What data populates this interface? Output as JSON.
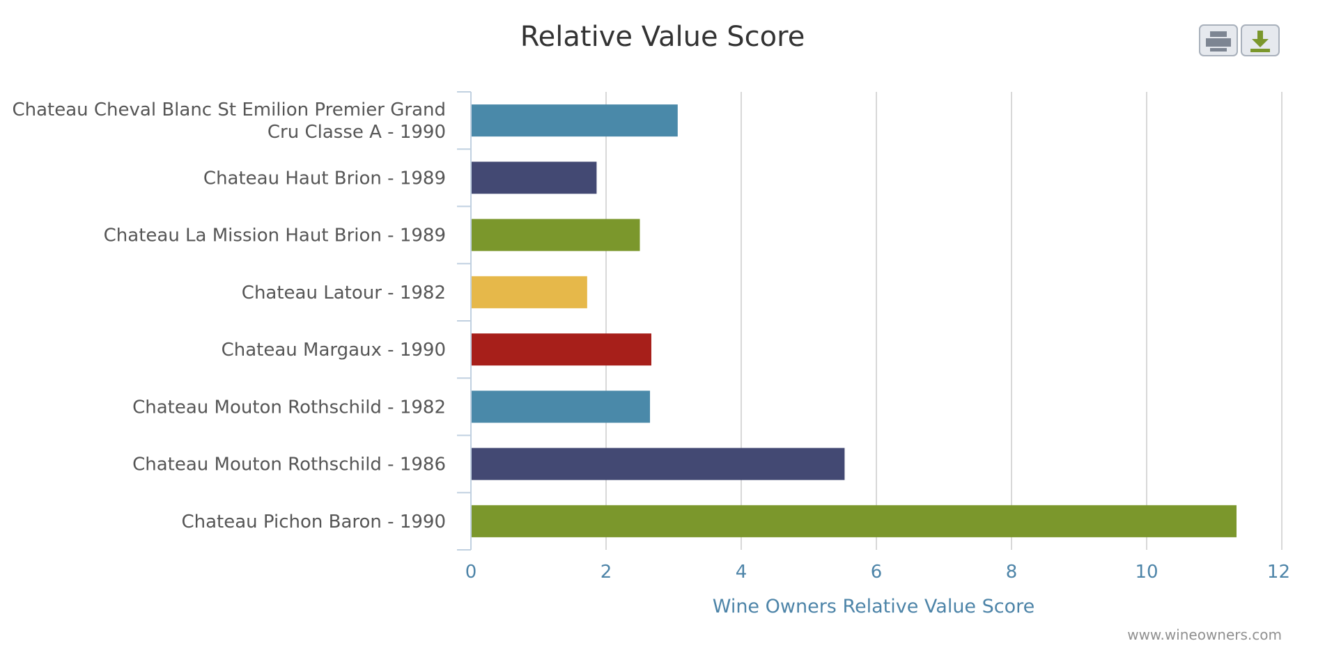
{
  "chart_data": {
    "type": "bar",
    "orientation": "horizontal",
    "title": "Relative Value Score",
    "xlabel": "Wine Owners Relative Value Score",
    "ylabel": "",
    "categories": [
      [
        "Chateau Cheval Blanc St Emilion Premier Grand",
        "Cru Classe A - 1990"
      ],
      [
        "Chateau Haut Brion - 1989"
      ],
      [
        "Chateau La Mission Haut Brion - 1989"
      ],
      [
        "Chateau Latour - 1982"
      ],
      [
        "Chateau Margaux - 1990"
      ],
      [
        "Chateau Mouton Rothschild - 1982"
      ],
      [
        "Chateau Mouton Rothschild - 1986"
      ],
      [
        "Chateau Pichon Baron - 1990"
      ]
    ],
    "values": [
      3.06,
      1.86,
      2.5,
      1.72,
      2.67,
      2.65,
      5.53,
      11.33
    ],
    "colors": [
      "#4a89a9",
      "#434973",
      "#7b972c",
      "#e6b84a",
      "#a71f1a",
      "#4a89a9",
      "#434973",
      "#7b972c"
    ],
    "xlim": [
      0,
      12
    ],
    "ticks": [
      0,
      2,
      4,
      6,
      8,
      10,
      12
    ],
    "grid": true,
    "legend": "none"
  },
  "credit": "www.wineowners.com",
  "export": {
    "print_icon": "printer-icon",
    "download_icon": "download-icon"
  }
}
